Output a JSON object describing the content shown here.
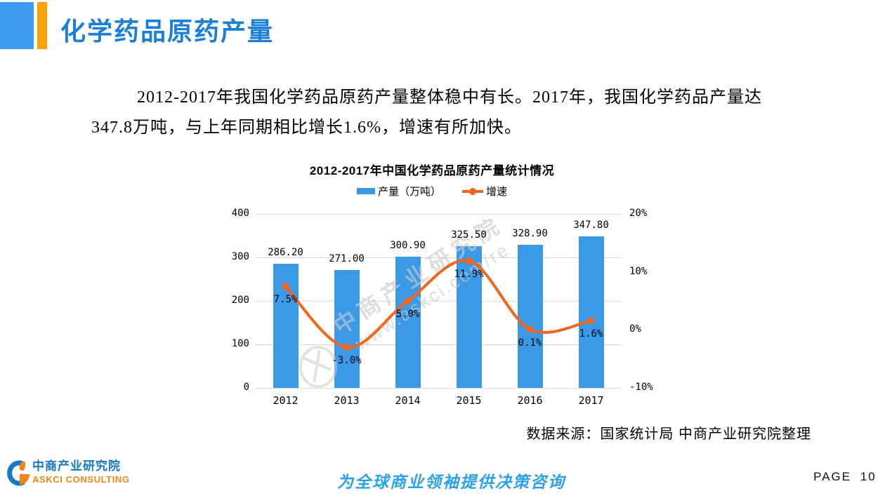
{
  "slide": {
    "title": "化学药品原药产量",
    "paragraph": {
      "line1": "2012-2017年我国化学药品原药产量整体稳中有长。2017年，我国化学药品产量达",
      "line2": "347.8万吨，与上年同期相比增长1.6%，增速有所加快。"
    },
    "source_note": "数据来源：国家统计局 中商产业研究院整理",
    "footer": {
      "logo_cn": "中商产业研究院",
      "logo_en": "ASKCI CONSULTING",
      "tagline": "为全球商业领袖提供决策咨询",
      "page_label": "PAGE 10"
    },
    "colors": {
      "accent_blue": "#3D9BF3",
      "accent_orange": "#FFA005",
      "title_blue": "#1B7ED8",
      "logo_blue": "#1878C8",
      "logo_orange": "#F08519",
      "tagline_blue": "#2BA1EA"
    }
  },
  "chart_data": {
    "type": "bar+line",
    "title": "2012-2017年中国化学药品原药产量统计情况",
    "categories": [
      "2012",
      "2013",
      "2014",
      "2015",
      "2016",
      "2017"
    ],
    "series": [
      {
        "name": "产量（万吨）",
        "type": "bar",
        "axis": "left",
        "color": "#3B9AE8",
        "values": [
          286.2,
          271.0,
          300.9,
          325.5,
          328.9,
          347.8
        ],
        "labels": [
          "286.20",
          "271.00",
          "300.90",
          "325.50",
          "328.90",
          "347.80"
        ]
      },
      {
        "name": "增速",
        "type": "line",
        "axis": "right",
        "color": "#F4641D",
        "values": [
          7.5,
          -3.0,
          5.0,
          11.9,
          0.1,
          1.6
        ],
        "labels": [
          "7.5%",
          "-3.0%",
          "5.0%",
          "11.9%",
          "0.1%",
          "1.6%"
        ]
      }
    ],
    "left_axis": {
      "range": [
        0,
        400
      ],
      "ticks": [
        "0",
        "100",
        "200",
        "300",
        "400"
      ]
    },
    "right_axis": {
      "range": [
        -10,
        20
      ],
      "ticks": [
        "-10%",
        "0%",
        "10%",
        "20%"
      ]
    },
    "legend_position": "top",
    "grid": true,
    "watermark": {
      "line1": "中商产业研究院",
      "line2": "www.askci.com/re"
    }
  }
}
